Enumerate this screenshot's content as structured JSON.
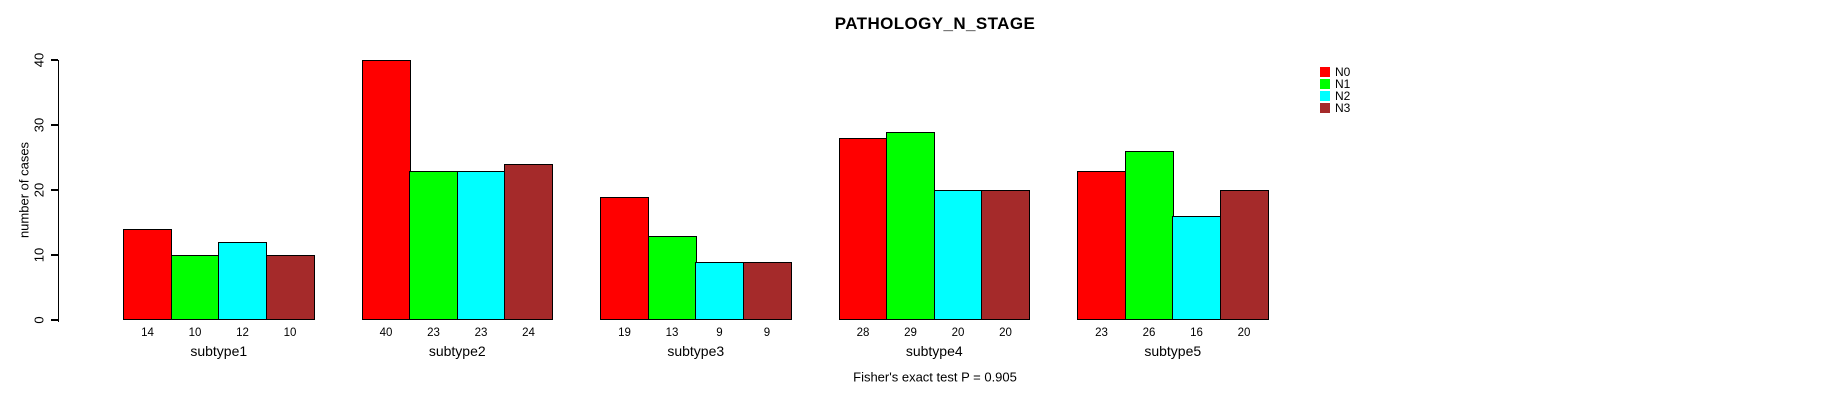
{
  "title": "PATHOLOGY_N_STAGE",
  "footer": "Fisher's exact test P = 0.905",
  "chart_data": {
    "type": "bar",
    "grouped": true,
    "title": "PATHOLOGY_N_STAGE",
    "subtitle_footer": "Fisher's exact test P = 0.905",
    "categories": [
      "subtype1",
      "subtype2",
      "subtype3",
      "subtype4",
      "subtype5"
    ],
    "series": [
      {
        "name": "N0",
        "color": "#FF0000",
        "values": [
          14,
          40,
          19,
          28,
          23
        ]
      },
      {
        "name": "N1",
        "color": "#00FF00",
        "values": [
          10,
          23,
          13,
          29,
          26
        ]
      },
      {
        "name": "N2",
        "color": "#00FFFF",
        "values": [
          12,
          23,
          9,
          20,
          16
        ]
      },
      {
        "name": "N3",
        "color": "#A52A2A",
        "values": [
          10,
          24,
          9,
          20,
          20
        ]
      }
    ],
    "xlabel": "",
    "ylabel": "number of cases",
    "ylim": [
      0,
      40
    ],
    "yticks": [
      0,
      10,
      20,
      30,
      40
    ],
    "bar_value_labels": true,
    "grid": false,
    "legend_position": "top-right",
    "axis_color": "#000000",
    "background_color": "#FFFFFF"
  }
}
